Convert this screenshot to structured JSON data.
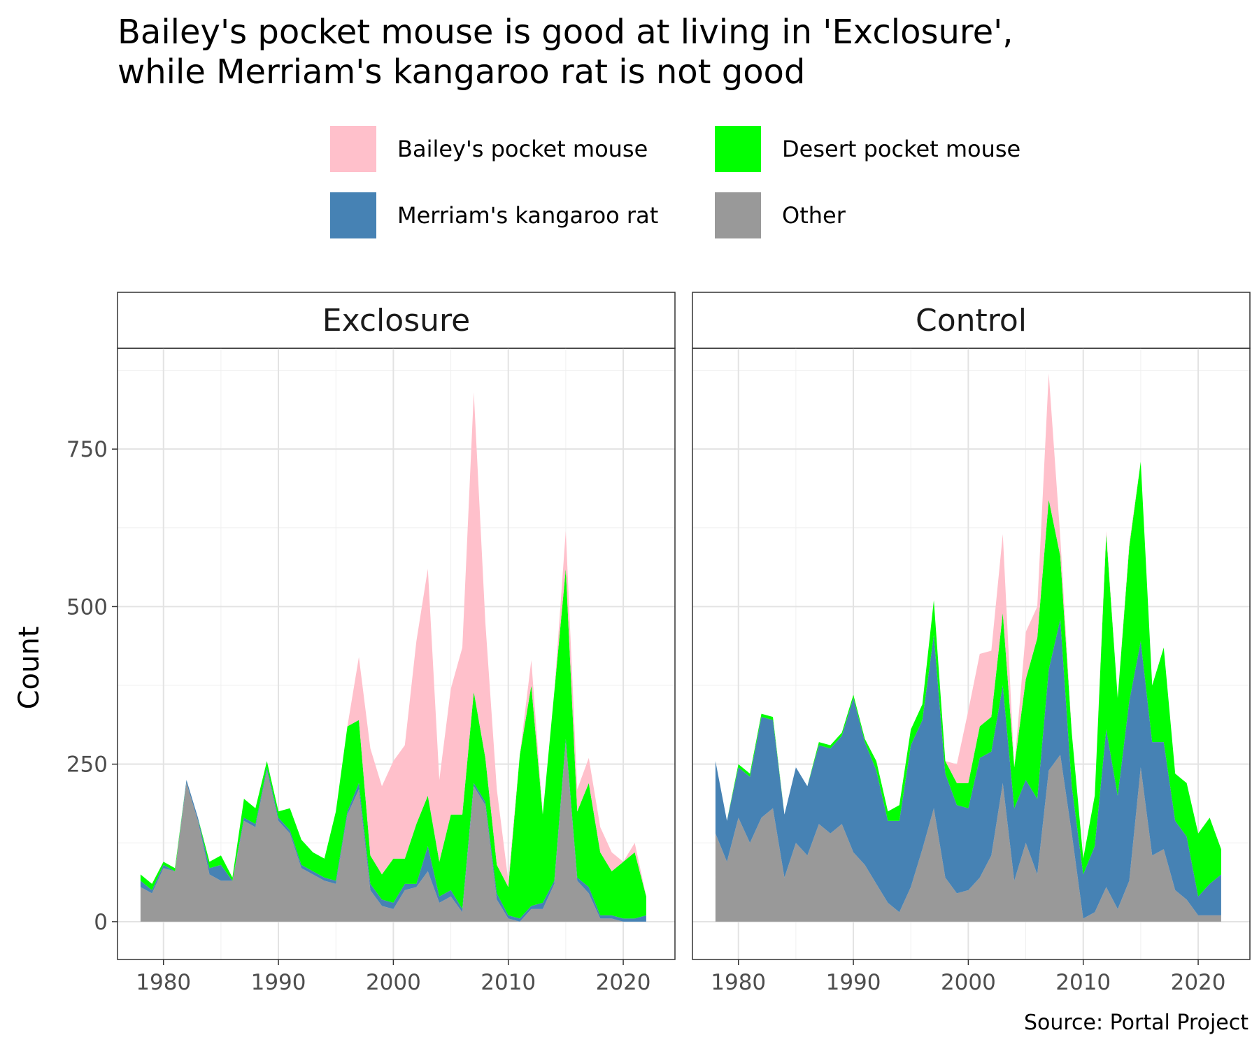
{
  "chart": {
    "title_line1": "Bailey's pocket mouse is good at living in 'Exclosure',",
    "title_line2": "while Merriam's kangaroo rat is not good",
    "caption": "Source: Portal Project",
    "ylabel": "Count"
  },
  "chart_data": {
    "type": "area",
    "stacked": true,
    "title": "Bailey's pocket mouse is good at living in 'Exclosure', while Merriam's kangaroo rat is not good",
    "xlabel": "",
    "ylabel": "Count",
    "xlim": [
      1976,
      2024.5
    ],
    "ylim": [
      -60,
      910
    ],
    "x_ticks": [
      1980,
      1990,
      2000,
      2010,
      2020
    ],
    "y_ticks": [
      0,
      250,
      500,
      750
    ],
    "grid": true,
    "legend_position": "top",
    "caption": "Source: Portal Project",
    "stack_order_bottom_to_top": [
      "Other",
      "Merriam's kangaroo rat",
      "Desert pocket mouse",
      "Bailey's pocket mouse"
    ],
    "legend": [
      {
        "name": "Bailey's pocket mouse",
        "color": "#FFC0CB"
      },
      {
        "name": "Desert pocket mouse",
        "color": "#00FF00"
      },
      {
        "name": "Merriam's kangaroo rat",
        "color": "#4682B4"
      },
      {
        "name": "Other",
        "color": "#999999"
      }
    ],
    "x": [
      1978,
      1979,
      1980,
      1981,
      1982,
      1983,
      1984,
      1985,
      1986,
      1987,
      1988,
      1989,
      1990,
      1991,
      1992,
      1993,
      1994,
      1995,
      1996,
      1997,
      1998,
      1999,
      2000,
      2001,
      2002,
      2003,
      2004,
      2005,
      2006,
      2007,
      2008,
      2009,
      2010,
      2011,
      2012,
      2013,
      2014,
      2015,
      2016,
      2017,
      2018,
      2019,
      2020,
      2021,
      2022
    ],
    "panels": [
      {
        "name": "Exclosure",
        "series": [
          {
            "name": "Other",
            "color": "#999999",
            "values": [
              55,
              45,
              85,
              80,
              220,
              160,
              75,
              65,
              65,
              160,
              150,
              240,
              160,
              140,
              85,
              75,
              65,
              60,
              170,
              210,
              50,
              25,
              20,
              50,
              55,
              80,
              30,
              40,
              15,
              215,
              185,
              35,
              5,
              0,
              20,
              20,
              60,
              285,
              65,
              45,
              5,
              5,
              0,
              0,
              0
            ]
          },
          {
            "name": "Merriam's kangaroo rat",
            "color": "#4682B4",
            "values": [
              10,
              5,
              5,
              0,
              5,
              5,
              10,
              25,
              0,
              5,
              5,
              5,
              5,
              5,
              5,
              5,
              5,
              5,
              5,
              10,
              10,
              10,
              10,
              10,
              5,
              40,
              10,
              10,
              5,
              5,
              5,
              10,
              5,
              5,
              5,
              10,
              5,
              5,
              5,
              10,
              5,
              5,
              5,
              5,
              10
            ]
          },
          {
            "name": "Desert pocket mouse",
            "color": "#00FF00",
            "values": [
              10,
              10,
              5,
              5,
              0,
              0,
              10,
              15,
              5,
              30,
              25,
              10,
              10,
              35,
              40,
              30,
              30,
              110,
              135,
              100,
              45,
              40,
              70,
              40,
              95,
              80,
              55,
              120,
              150,
              145,
              70,
              45,
              45,
              260,
              350,
              140,
              300,
              270,
              105,
              165,
              100,
              70,
              90,
              105,
              30
            ]
          },
          {
            "name": "Bailey's pocket mouse",
            "color": "#FFC0CB",
            "values": [
              0,
              0,
              0,
              0,
              0,
              0,
              0,
              0,
              0,
              0,
              0,
              0,
              0,
              0,
              0,
              0,
              0,
              0,
              0,
              100,
              170,
              140,
              155,
              180,
              290,
              360,
              130,
              200,
              265,
              475,
              215,
              120,
              10,
              0,
              40,
              0,
              0,
              60,
              35,
              40,
              40,
              30,
              0,
              15,
              0
            ]
          }
        ]
      },
      {
        "name": "Control",
        "series": [
          {
            "name": "Other",
            "color": "#999999",
            "values": [
              140,
              95,
              165,
              125,
              165,
              180,
              70,
              125,
              105,
              155,
              140,
              155,
              110,
              90,
              60,
              30,
              15,
              55,
              115,
              180,
              70,
              45,
              50,
              70,
              105,
              220,
              65,
              125,
              75,
              240,
              265,
              140,
              5,
              15,
              55,
              20,
              65,
              245,
              105,
              115,
              50,
              35,
              10,
              10,
              10
            ]
          },
          {
            "name": "Merriam's kangaroo rat",
            "color": "#4682B4",
            "values": [
              115,
              65,
              80,
              105,
              160,
              140,
              100,
              120,
              110,
              125,
              135,
              140,
              245,
              195,
              180,
              130,
              145,
              225,
              205,
              275,
              165,
              140,
              130,
              190,
              165,
              155,
              115,
              100,
              120,
              160,
              215,
              75,
              70,
              105,
              250,
              180,
              285,
              200,
              180,
              170,
              110,
              100,
              30,
              50,
              65
            ]
          },
          {
            "name": "Desert pocket mouse",
            "color": "#00FF00",
            "values": [
              0,
              0,
              5,
              5,
              5,
              5,
              0,
              0,
              0,
              5,
              5,
              5,
              5,
              5,
              15,
              15,
              25,
              25,
              25,
              55,
              20,
              35,
              40,
              50,
              55,
              115,
              65,
              160,
              255,
              270,
              100,
              85,
              25,
              80,
              310,
              155,
              245,
              285,
              90,
              150,
              75,
              85,
              100,
              105,
              40
            ]
          },
          {
            "name": "Bailey's pocket mouse",
            "color": "#FFC0CB",
            "values": [
              0,
              0,
              0,
              0,
              0,
              0,
              0,
              0,
              0,
              0,
              0,
              0,
              0,
              0,
              0,
              0,
              0,
              0,
              0,
              0,
              0,
              30,
              115,
              115,
              105,
              125,
              0,
              75,
              50,
              200,
              30,
              0,
              0,
              0,
              5,
              0,
              5,
              0,
              0,
              0,
              0,
              0,
              0,
              0,
              0
            ]
          }
        ]
      }
    ]
  }
}
